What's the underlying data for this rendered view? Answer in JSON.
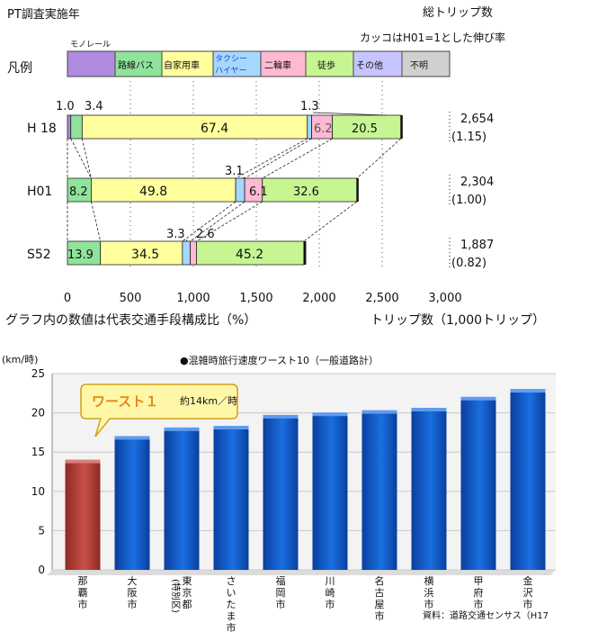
{
  "chart_data": [
    {
      "type": "bar",
      "orientation": "horizontal",
      "stacked": true,
      "title": "PT調査実施年",
      "corner_title": "総トリップ数",
      "corner_subtitle": "カッコはH01=1とした伸び率",
      "legend_label": "凡例",
      "legend": [
        {
          "name": "モノレール",
          "color": "#b08be0"
        },
        {
          "name": "路線バス",
          "color": "#8fe39a"
        },
        {
          "name": "自家用車",
          "color": "#ffff9e"
        },
        {
          "name": "タクシー・ハイヤー",
          "color": "#a6d8ff"
        },
        {
          "name": "二輪車",
          "color": "#ffb9d2"
        },
        {
          "name": "徒歩",
          "color": "#c6f592"
        },
        {
          "name": "その他",
          "color": "#c7c5ff"
        },
        {
          "name": "不明",
          "color": "#d0d0d0"
        }
      ],
      "legend_texts": {
        "monorail": "モノレール",
        "bus": "路線バス",
        "car": "自家用車",
        "taxi1": "タクシー",
        "taxi2": "ハイヤー",
        "twowheel": "二輪車",
        "walk": "徒歩",
        "other": "その他",
        "unknown": "不明"
      },
      "rows": [
        {
          "label": "H 18",
          "total": 2654,
          "total_text": "2,654",
          "ratio_text": "(1.15)",
          "shares": [
            {
              "mode": "モノレール",
              "value": 1.0
            },
            {
              "mode": "路線バス",
              "value": 3.4
            },
            {
              "mode": "自家用車",
              "value": 67.4
            },
            {
              "mode": "タクシー・ハイヤー",
              "value": 1.3
            },
            {
              "mode": "二輪車",
              "value": 6.2
            },
            {
              "mode": "徒歩",
              "value": 20.5
            }
          ],
          "labels": {
            "monorail": "1.0",
            "bus": "3.4",
            "car": "67.4",
            "taxi": "1.3",
            "twowheel": "6.2",
            "walk": "20.5"
          }
        },
        {
          "label": "H01",
          "total": 2304,
          "total_text": "2,304",
          "ratio_text": "(1.00)",
          "shares": [
            {
              "mode": "路線バス",
              "value": 8.2
            },
            {
              "mode": "自家用車",
              "value": 49.8
            },
            {
              "mode": "タクシー・ハイヤー",
              "value": 3.1
            },
            {
              "mode": "二輪車",
              "value": 6.1
            },
            {
              "mode": "徒歩",
              "value": 32.6
            }
          ],
          "labels": {
            "bus": "8.2",
            "car": "49.8",
            "taxi": "3.1",
            "twowheel": "6.1",
            "walk": "32.6"
          }
        },
        {
          "label": "S52",
          "total": 1887,
          "total_text": "1,887",
          "ratio_text": "(0.82)",
          "shares": [
            {
              "mode": "路線バス",
              "value": 13.9
            },
            {
              "mode": "自家用車",
              "value": 34.5
            },
            {
              "mode": "タクシー・ハイヤー",
              "value": 3.3
            },
            {
              "mode": "二輪車",
              "value": 2.6
            },
            {
              "mode": "徒歩",
              "value": 45.2
            }
          ],
          "labels": {
            "bus": "13.9",
            "car": "34.5",
            "taxi": "3.3",
            "twowheel": "2.6",
            "walk": "45.2"
          }
        }
      ],
      "x_ticks": [
        "0",
        "500",
        "1,000",
        "1,500",
        "2,000",
        "2,500",
        "3,000"
      ],
      "xlim": [
        0,
        3000
      ],
      "xlabel": "トリップ数（1,000トリップ）",
      "note": "グラフ内の数値は代表交通手段構成比（%）"
    },
    {
      "type": "bar",
      "title": "●混雑時旅行速度ワースト10（一般道路計）",
      "ylabel": "(km/時)",
      "ylim": [
        0,
        25
      ],
      "y_ticks": [
        "0",
        "5",
        "10",
        "15",
        "20",
        "25"
      ],
      "categories": [
        "那覇市",
        "大阪市",
        "東京都(特別区)",
        "さいたま市",
        "福岡市",
        "川崎市",
        "名古屋市",
        "横浜市",
        "甲府市",
        "金沢市"
      ],
      "category_lines": [
        [
          "那",
          "覇",
          "市"
        ],
        [
          "大",
          "阪",
          "市"
        ],
        [
          "東",
          "京",
          "都"
        ],
        [
          "さ",
          "い",
          "た",
          "ま",
          "市"
        ],
        [
          "福",
          "岡",
          "市"
        ],
        [
          "川",
          "崎",
          "市"
        ],
        [
          "名",
          "古",
          "屋",
          "市"
        ],
        [
          "横",
          "浜",
          "市"
        ],
        [
          "甲",
          "府",
          "市"
        ],
        [
          "金",
          "沢",
          "市"
        ]
      ],
      "category_sub": "(特別区)",
      "values": [
        13.7,
        16.7,
        17.8,
        18.0,
        19.4,
        19.7,
        20.0,
        20.3,
        21.7,
        22.7
      ],
      "highlight_color": "#c8504a",
      "bar_color": "#1a6fe0",
      "callout_title": "ワースト１",
      "callout_text": "約14km／時",
      "source": "資料：道路交通センサス（H17"
    }
  ]
}
